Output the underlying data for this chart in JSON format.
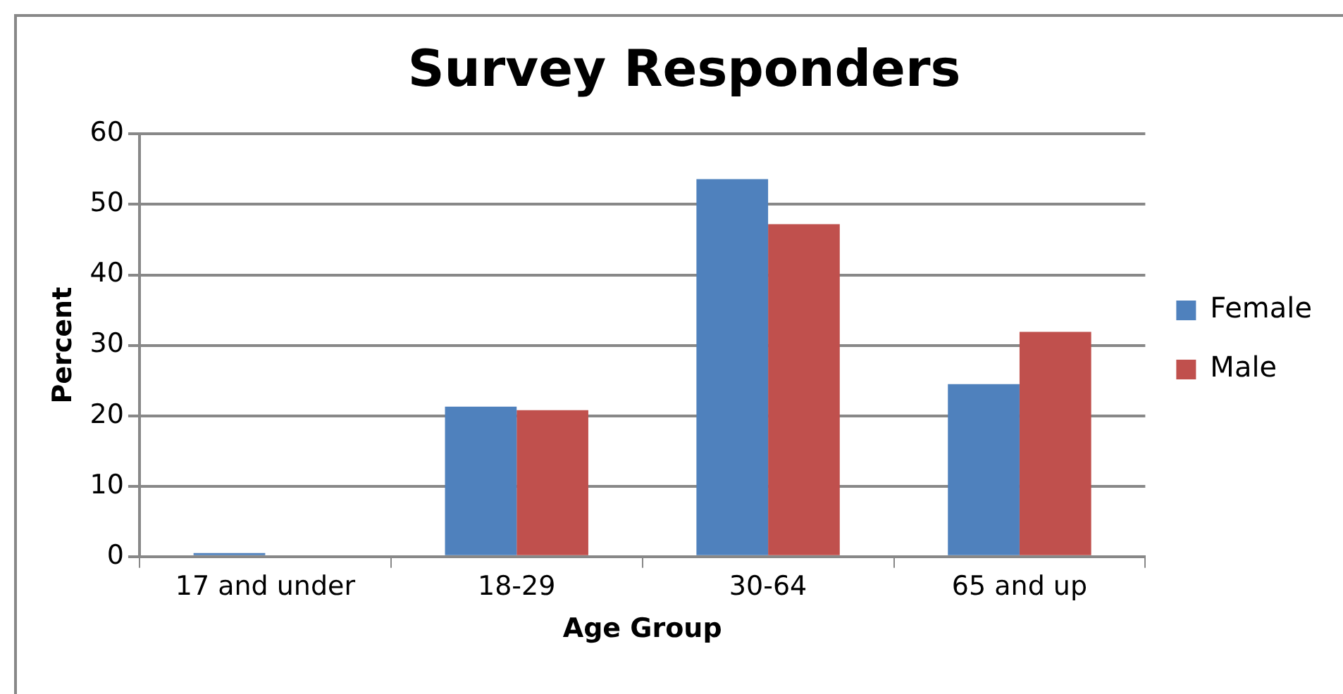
{
  "chart_data": {
    "type": "bar",
    "title": "Survey Responders",
    "xlabel": "Age Group",
    "ylabel": "Percent",
    "categories": [
      "17 and under",
      "18-29",
      "30-64",
      "65 and up"
    ],
    "series": [
      {
        "name": "Female",
        "color": "#4f81bd",
        "values": [
          0.5,
          21.3,
          53.6,
          24.5
        ]
      },
      {
        "name": "Male",
        "color": "#c0504d",
        "values": [
          0,
          20.8,
          47.2,
          31.9
        ]
      }
    ],
    "ylim": [
      0,
      60
    ],
    "yticks": [
      0,
      10,
      20,
      30,
      40,
      50,
      60
    ],
    "grid": "y",
    "legend": "right"
  }
}
